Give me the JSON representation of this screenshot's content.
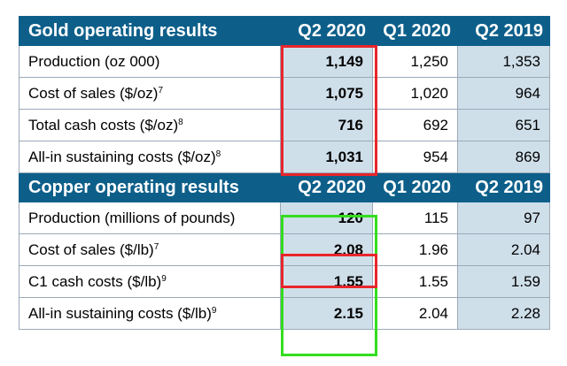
{
  "gold": {
    "title": "Gold operating results",
    "columns": [
      "Q2 2020",
      "Q1 2020",
      "Q2 2019"
    ],
    "rows": [
      {
        "label": "Production (oz 000)",
        "sup": "",
        "values": [
          "1,149",
          "1,250",
          "1,353"
        ]
      },
      {
        "label": "Cost of sales ($/oz)",
        "sup": "7",
        "values": [
          "1,075",
          "1,020",
          "964"
        ]
      },
      {
        "label": "Total cash costs ($/oz)",
        "sup": "8",
        "values": [
          "716",
          "692",
          "651"
        ]
      },
      {
        "label": "All-in sustaining costs ($/oz)",
        "sup": "8",
        "values": [
          "1,031",
          "954",
          "869"
        ]
      }
    ]
  },
  "copper": {
    "title": "Copper operating results",
    "columns": [
      "Q2 2020",
      "Q1 2020",
      "Q2 2019"
    ],
    "rows": [
      {
        "label": "Production (millions of pounds)",
        "sup": "",
        "values": [
          "120",
          "115",
          "97"
        ]
      },
      {
        "label": "Cost of sales ($/lb)",
        "sup": "7",
        "values": [
          "2.08",
          "1.96",
          "2.04"
        ]
      },
      {
        "label": "C1 cash costs ($/lb)",
        "sup": "9",
        "values": [
          "1.55",
          "1.55",
          "1.59"
        ]
      },
      {
        "label": "All-in sustaining costs ($/lb)",
        "sup": "9",
        "values": [
          "2.15",
          "2.04",
          "2.28"
        ]
      }
    ]
  },
  "highlight_colors": {
    "red": "#e8262b",
    "green": "#33dd1f"
  }
}
